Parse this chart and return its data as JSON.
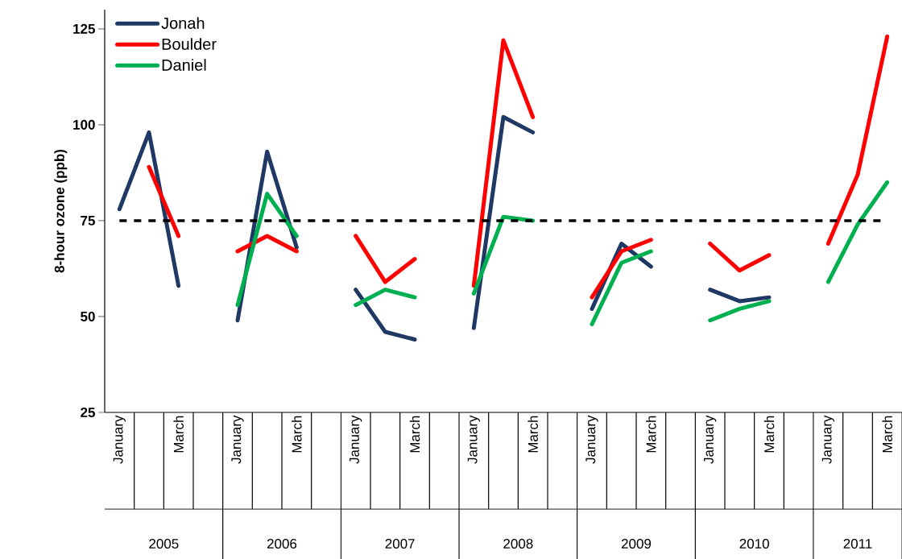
{
  "chart_data": {
    "type": "line",
    "ylabel": "8-hour ozone (ppb)",
    "categories": [
      "January",
      null,
      "March",
      null,
      "January",
      null,
      "March",
      null,
      "January",
      null,
      "March",
      null,
      "January",
      null,
      "March",
      null,
      "January",
      null,
      "March",
      null,
      "January",
      null,
      "March",
      null,
      "January",
      null,
      "March"
    ],
    "series": [
      {
        "name": "Jonah",
        "color": "#1f3864",
        "values": [
          78,
          98,
          58,
          null,
          49,
          93,
          68,
          null,
          57,
          46,
          44,
          null,
          47,
          102,
          98,
          null,
          52,
          69,
          63,
          null,
          57,
          54,
          55,
          null,
          null,
          null,
          null
        ]
      },
      {
        "name": "Boulder",
        "color": "#ff0000",
        "values": [
          null,
          89,
          71,
          null,
          67,
          71,
          67,
          null,
          71,
          59,
          65,
          null,
          58,
          122,
          102,
          null,
          55,
          67,
          70,
          null,
          69,
          62,
          66,
          null,
          69,
          87,
          123
        ]
      },
      {
        "name": "Daniel",
        "color": "#00b050",
        "values": [
          null,
          null,
          null,
          null,
          53,
          82,
          71,
          null,
          53,
          57,
          55,
          null,
          56,
          76,
          75,
          null,
          48,
          64,
          67,
          null,
          49,
          52,
          54,
          null,
          59,
          74,
          85
        ]
      }
    ],
    "ylim": [
      25,
      130
    ],
    "yticks": [
      25,
      50,
      75,
      100,
      125
    ],
    "ref_lines": [
      {
        "axis": "y",
        "value": 75,
        "color": "#000000",
        "line_style": "dashed"
      }
    ],
    "annotations": [
      "2005",
      "2006",
      "2007",
      "2008",
      "2009",
      "2010",
      "2011"
    ],
    "legend": "top left",
    "marker": "none",
    "grid": false
  }
}
